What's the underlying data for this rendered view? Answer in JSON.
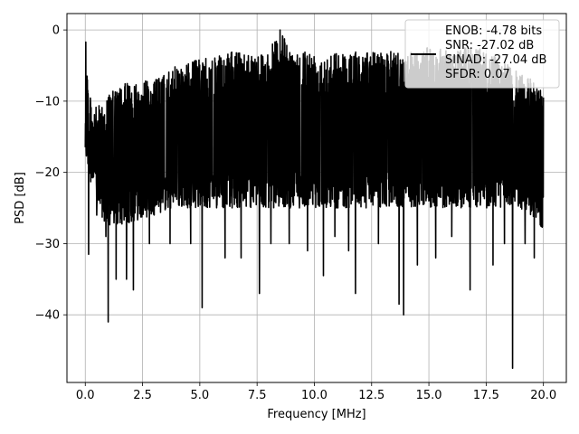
{
  "chart_data": {
    "type": "line",
    "title": "",
    "xlabel": "Frequency [MHz]",
    "ylabel": "PSD [dB]",
    "xlim": [
      -0.8,
      21.0
    ],
    "ylim": [
      -49.5,
      2.3
    ],
    "x_ticks": [
      0.0,
      2.5,
      5.0,
      7.5,
      10.0,
      12.5,
      15.0,
      17.5,
      20.0
    ],
    "x_tick_labels": [
      "0.0",
      "2.5",
      "5.0",
      "7.5",
      "10.0",
      "12.5",
      "15.0",
      "17.5",
      "20.0"
    ],
    "y_ticks": [
      0,
      -10,
      -20,
      -30,
      -40
    ],
    "y_tick_labels": [
      "0",
      "−10",
      "−20",
      "−30",
      "−40"
    ],
    "grid": true,
    "legend_position": "top-right",
    "series": [
      {
        "name": "",
        "color": "#000000",
        "x_range": [
          0.0,
          20.0
        ],
        "upper_envelope": [
          [
            0.0,
            -8
          ],
          [
            0.05,
            -1.7
          ],
          [
            0.15,
            -9
          ],
          [
            0.5,
            -11
          ],
          [
            1.0,
            -9
          ],
          [
            1.5,
            -8
          ],
          [
            2.0,
            -7
          ],
          [
            3.0,
            -7
          ],
          [
            3.5,
            -6
          ],
          [
            4.0,
            -5
          ],
          [
            4.5,
            -4.5
          ],
          [
            5.0,
            -4
          ],
          [
            5.5,
            -4
          ],
          [
            6.0,
            -3.5
          ],
          [
            6.5,
            -3
          ],
          [
            7.0,
            -3
          ],
          [
            7.5,
            -3
          ],
          [
            8.0,
            -3
          ],
          [
            8.5,
            0
          ],
          [
            9.0,
            -3
          ],
          [
            9.5,
            -2.5
          ],
          [
            10.0,
            -3
          ],
          [
            10.5,
            -3
          ],
          [
            11.0,
            -3
          ],
          [
            11.5,
            -3
          ],
          [
            12.0,
            -3
          ],
          [
            12.5,
            -3
          ],
          [
            13.0,
            -3
          ],
          [
            13.5,
            -3
          ],
          [
            14.0,
            -3
          ],
          [
            14.5,
            -2.5
          ],
          [
            15.0,
            -2.5
          ],
          [
            15.5,
            -2.5
          ],
          [
            16.0,
            -3
          ],
          [
            16.5,
            -2.5
          ],
          [
            17.0,
            -2
          ],
          [
            17.5,
            -3
          ],
          [
            18.0,
            -4
          ],
          [
            18.5,
            -5
          ],
          [
            19.0,
            -6
          ],
          [
            19.5,
            -7
          ],
          [
            20.0,
            -8
          ]
        ],
        "lower_envelope": [
          [
            0.0,
            -18
          ],
          [
            0.5,
            -25
          ],
          [
            1.0,
            -28
          ],
          [
            2.0,
            -27
          ],
          [
            3.0,
            -26
          ],
          [
            4.0,
            -25
          ],
          [
            5.0,
            -25
          ],
          [
            6.0,
            -25
          ],
          [
            7.0,
            -25
          ],
          [
            8.0,
            -25
          ],
          [
            9.0,
            -25
          ],
          [
            10.0,
            -25
          ],
          [
            11.0,
            -25
          ],
          [
            12.0,
            -25
          ],
          [
            13.0,
            -25
          ],
          [
            14.0,
            -25
          ],
          [
            15.0,
            -25
          ],
          [
            16.0,
            -25
          ],
          [
            17.0,
            -25
          ],
          [
            18.0,
            -25
          ],
          [
            19.0,
            -25
          ],
          [
            20.0,
            -28
          ]
        ],
        "dips": [
          [
            0.15,
            -31.5
          ],
          [
            0.5,
            -26
          ],
          [
            0.9,
            -29
          ],
          [
            1.0,
            -41
          ],
          [
            1.35,
            -35
          ],
          [
            1.8,
            -35
          ],
          [
            2.1,
            -36.5
          ],
          [
            2.8,
            -30
          ],
          [
            3.7,
            -30
          ],
          [
            4.6,
            -30
          ],
          [
            5.1,
            -39
          ],
          [
            6.1,
            -32
          ],
          [
            6.8,
            -32
          ],
          [
            7.6,
            -37
          ],
          [
            8.1,
            -30
          ],
          [
            8.9,
            -30
          ],
          [
            9.7,
            -31
          ],
          [
            10.4,
            -34.5
          ],
          [
            10.9,
            -29
          ],
          [
            11.5,
            -31
          ],
          [
            11.8,
            -37
          ],
          [
            12.8,
            -30
          ],
          [
            13.7,
            -38.5
          ],
          [
            13.9,
            -40
          ],
          [
            14.5,
            -33
          ],
          [
            15.3,
            -32
          ],
          [
            16.0,
            -29
          ],
          [
            16.8,
            -36.5
          ],
          [
            17.8,
            -33
          ],
          [
            18.3,
            -30
          ],
          [
            18.65,
            -47.5
          ],
          [
            19.2,
            -30
          ],
          [
            19.6,
            -32
          ]
        ]
      }
    ],
    "legend": [
      "ENOB: -4.78 bits",
      "SNR: -27.02 dB",
      "SINAD: -27.04 dB",
      "SFDR: 0.07"
    ]
  }
}
